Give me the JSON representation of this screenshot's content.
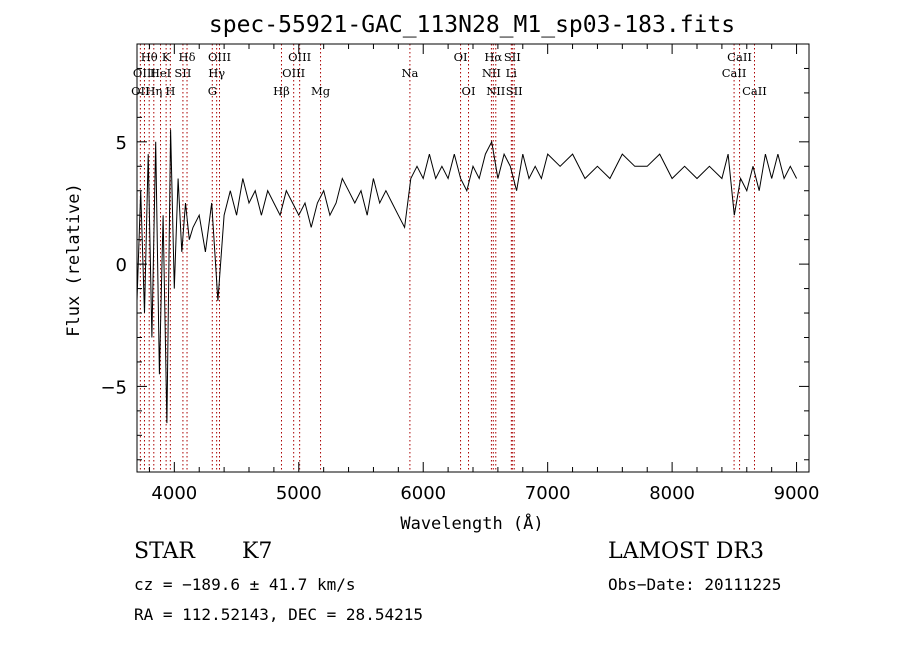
{
  "chart_data": {
    "type": "line",
    "title": "spec-55921-GAC_113N28_M1_sp03-183.fits",
    "xlabel": "Wavelength (Å)",
    "ylabel": "Flux (relative)",
    "xlim": [
      3700,
      9100
    ],
    "ylim": [
      -8.5,
      9.0
    ],
    "x_ticks": [
      4000,
      5000,
      6000,
      7000,
      8000,
      9000
    ],
    "y_ticks": [
      -5,
      0,
      5
    ],
    "grid": false,
    "line_color": "#000000",
    "marker_color": "#aa0000",
    "spectral_lines": [
      {
        "label": "OII",
        "wavelength": 3727,
        "row": 3
      },
      {
        "label": "Hθ",
        "wavelength": 3798,
        "row": 1
      },
      {
        "label": "OIII",
        "wavelength": 3760,
        "row": 2
      },
      {
        "label": "Hη",
        "wavelength": 3835,
        "row": 3
      },
      {
        "label": "HeI",
        "wavelength": 3889,
        "row": 2
      },
      {
        "label": "K",
        "wavelength": 3934,
        "row": 1
      },
      {
        "label": "H",
        "wavelength": 3968,
        "row": 3
      },
      {
        "label": "SII",
        "wavelength": 4069,
        "row": 2
      },
      {
        "label": "Hδ",
        "wavelength": 4102,
        "row": 1
      },
      {
        "label": "OIII",
        "wavelength": 4363,
        "row": 1
      },
      {
        "label": "Hγ",
        "wavelength": 4340,
        "row": 2
      },
      {
        "label": "G",
        "wavelength": 4305,
        "row": 3
      },
      {
        "label": "Hβ",
        "wavelength": 4861,
        "row": 3
      },
      {
        "label": "OIII",
        "wavelength": 4959,
        "row": 2
      },
      {
        "label": "OIII",
        "wavelength": 5007,
        "row": 1
      },
      {
        "label": "Mg",
        "wavelength": 5175,
        "row": 3
      },
      {
        "label": "Na",
        "wavelength": 5893,
        "row": 2
      },
      {
        "label": "OI",
        "wavelength": 6300,
        "row": 1
      },
      {
        "label": "OI",
        "wavelength": 6364,
        "row": 3
      },
      {
        "label": "NII",
        "wavelength": 6548,
        "row": 2
      },
      {
        "label": "Hα",
        "wavelength": 6563,
        "row": 1
      },
      {
        "label": "NII",
        "wavelength": 6583,
        "row": 3
      },
      {
        "label": "Li",
        "wavelength": 6708,
        "row": 2
      },
      {
        "label": "SII",
        "wavelength": 6716,
        "row": 1
      },
      {
        "label": "SII",
        "wavelength": 6731,
        "row": 3
      },
      {
        "label": "CaII",
        "wavelength": 8498,
        "row": 2
      },
      {
        "label": "CaII",
        "wavelength": 8542,
        "row": 1
      },
      {
        "label": "CaII",
        "wavelength": 8662,
        "row": 3
      }
    ],
    "series": [
      {
        "x": [
          3700,
          3730,
          3760,
          3790,
          3820,
          3850,
          3880,
          3910,
          3940,
          3970,
          4000,
          4030,
          4060,
          4090,
          4120,
          4150,
          4200,
          4250,
          4300,
          4350,
          4400,
          4450,
          4500,
          4550,
          4600,
          4650,
          4700,
          4750,
          4800,
          4850,
          4900,
          4950,
          5000,
          5050,
          5100,
          5150,
          5200,
          5250,
          5300,
          5350,
          5400,
          5450,
          5500,
          5550,
          5600,
          5650,
          5700,
          5750,
          5800,
          5850,
          5900,
          5950,
          6000,
          6050,
          6100,
          6150,
          6200,
          6250,
          6300,
          6350,
          6400,
          6450,
          6500,
          6550,
          6600,
          6650,
          6700,
          6750,
          6800,
          6850,
          6900,
          6950,
          7000,
          7100,
          7200,
          7300,
          7400,
          7500,
          7600,
          7700,
          7800,
          7900,
          8000,
          8100,
          8200,
          8300,
          8400,
          8450,
          8500,
          8550,
          8600,
          8650,
          8700,
          8750,
          8800,
          8850,
          8900,
          8950,
          9000
        ],
        "y": [
          -1.5,
          3.0,
          -2.0,
          4.5,
          -3.0,
          5.0,
          -4.5,
          2.0,
          -6.5,
          5.5,
          -1.0,
          3.5,
          0.5,
          2.5,
          1.0,
          1.5,
          2.0,
          0.5,
          2.5,
          -1.5,
          2.0,
          3.0,
          2.0,
          3.5,
          2.5,
          3.0,
          2.0,
          3.0,
          2.5,
          2.0,
          3.0,
          2.5,
          2.0,
          2.5,
          1.5,
          2.5,
          3.0,
          2.0,
          2.5,
          3.5,
          3.0,
          2.5,
          3.0,
          2.0,
          3.5,
          2.5,
          3.0,
          2.5,
          2.0,
          1.5,
          3.5,
          4.0,
          3.5,
          4.5,
          3.5,
          4.0,
          3.5,
          4.5,
          3.5,
          3.0,
          4.0,
          3.5,
          4.5,
          5.0,
          3.5,
          4.5,
          4.0,
          3.0,
          4.5,
          3.5,
          4.0,
          3.5,
          4.5,
          4.0,
          4.5,
          3.5,
          4.0,
          3.5,
          4.5,
          4.0,
          4.0,
          4.5,
          3.5,
          4.0,
          3.5,
          4.0,
          3.5,
          4.5,
          2.0,
          3.5,
          3.0,
          4.0,
          3.0,
          4.5,
          3.5,
          4.5,
          3.5,
          4.0,
          3.5
        ]
      }
    ]
  },
  "info": {
    "object_class": "STAR",
    "subclass": "K7",
    "survey": "LAMOST DR3",
    "cz": "cz = −189.6 ± 41.7 km/s",
    "obs_date": "Obs−Date: 20111225",
    "coords": "RA = 112.52143, DEC =  28.54215"
  }
}
